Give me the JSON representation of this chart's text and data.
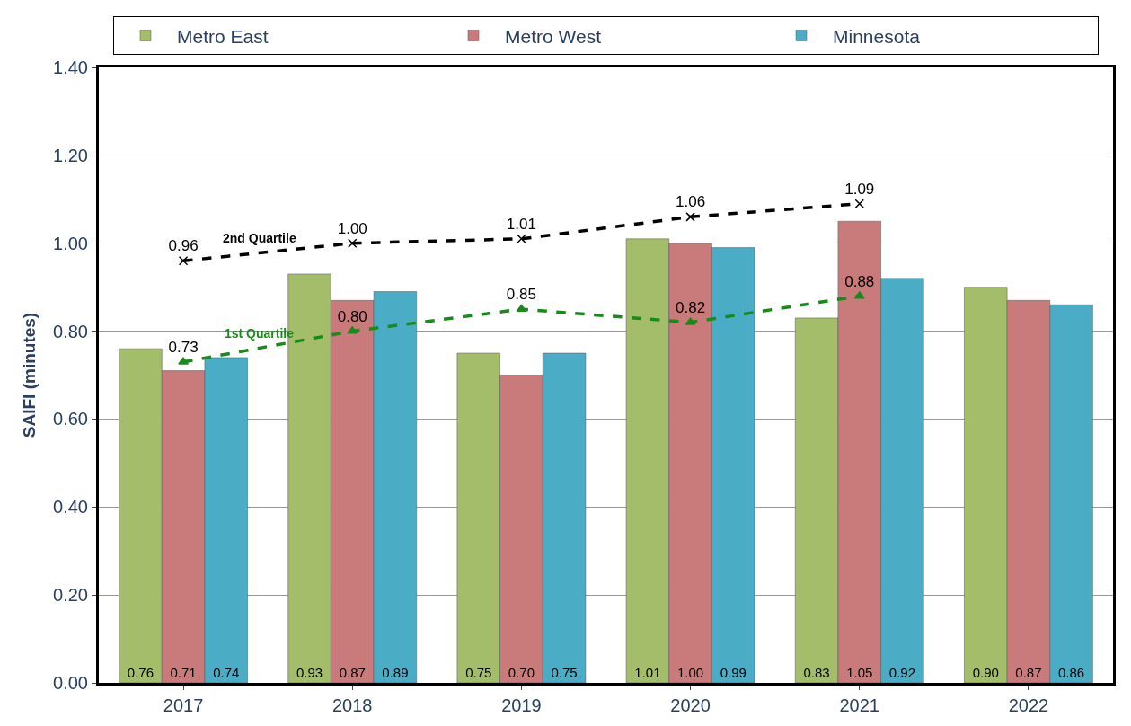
{
  "chart_data": {
    "type": "bar",
    "ylabel": "SAIFI (minutes)",
    "categories": [
      "2017",
      "2018",
      "2019",
      "2020",
      "2021",
      "2022"
    ],
    "series": [
      {
        "name": "Metro East",
        "color": "#a4bd6a",
        "values": [
          0.76,
          0.93,
          0.75,
          1.01,
          0.83,
          0.9
        ],
        "value_labels": [
          "0.76",
          "0.93",
          "0.75",
          "1.01",
          "0.83",
          "0.90"
        ]
      },
      {
        "name": "Metro West",
        "color": "#c97a7a",
        "values": [
          0.71,
          0.87,
          0.7,
          1.0,
          1.05,
          0.87
        ],
        "value_labels": [
          "0.71",
          "0.87",
          "0.70",
          "1.00",
          "1.05",
          "0.87"
        ]
      },
      {
        "name": "Minnesota",
        "color": "#4bacc6",
        "values": [
          0.74,
          0.89,
          0.75,
          0.99,
          0.92,
          0.86
        ],
        "value_labels": [
          "0.74",
          "0.89",
          "0.75",
          "0.99",
          "0.92",
          "0.86"
        ]
      },
      {
        "name": "2nd Quartile",
        "type": "line",
        "color": "#000000",
        "line_style": "dashed",
        "marker": "cross",
        "values": [
          0.96,
          1.0,
          1.01,
          1.06,
          1.09,
          null
        ],
        "value_labels": [
          "0.96",
          "1.00",
          "1.01",
          "1.06",
          "1.09",
          null
        ]
      },
      {
        "name": "1st Quartile",
        "type": "line",
        "color": "#1a8a1a",
        "line_style": "dashed",
        "marker": "triangle",
        "values": [
          0.73,
          0.8,
          0.85,
          0.82,
          0.88,
          null
        ],
        "value_labels": [
          "0.73",
          "0.80",
          "0.85",
          "0.82",
          "0.88",
          null
        ]
      }
    ],
    "ylim": [
      0,
      1.4
    ],
    "yticks": [
      {
        "value": 0,
        "label": "0.00"
      },
      {
        "value": 0.2,
        "label": "0.20"
      },
      {
        "value": 0.4,
        "label": "0.40"
      },
      {
        "value": 0.6,
        "label": "0.60"
      },
      {
        "value": 0.8,
        "label": "0.80"
      },
      {
        "value": 1.0,
        "label": "1.00"
      },
      {
        "value": 1.2,
        "label": "1.20"
      },
      {
        "value": 1.4,
        "label": "1.40"
      }
    ],
    "grid": "y",
    "legend": "top"
  }
}
